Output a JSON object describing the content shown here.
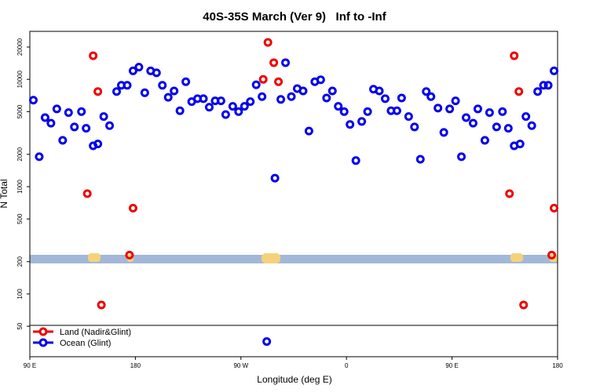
{
  "chart_data": {
    "type": "scatter",
    "title": "40S-35S March (Ver 9)   Inf to -Inf",
    "x_label": "Longitude (deg E)",
    "y_label": "N Total",
    "xlim": [
      90,
      540
    ],
    "xticks": [
      {
        "value": 90,
        "label": "90 E"
      },
      {
        "value": 180,
        "label": "180"
      },
      {
        "value": 270,
        "label": "90 W"
      },
      {
        "value": 360,
        "label": "0"
      },
      {
        "value": 450,
        "label": "90 E"
      },
      {
        "value": 540,
        "label": "180"
      }
    ],
    "ylim": [
      26,
      28000
    ],
    "yticks": [
      50,
      100,
      200,
      500,
      1000,
      2000,
      5000,
      10000,
      20000
    ],
    "y_log": true,
    "legend": "lower left",
    "series": [
      {
        "name": "Land (Nadir&Glint)",
        "color": "#ee0000",
        "x": [
          139,
          144,
          148,
          151,
          175,
          178,
          289,
          293,
          298,
          302,
          499,
          503,
          507,
          511,
          535,
          537
        ],
        "values": [
          860,
          16600,
          7700,
          79,
          230,
          630,
          10000,
          22100,
          14300,
          9500,
          860,
          16600,
          7700,
          79,
          230,
          630
        ]
      },
      {
        "name": "Ocean (Glint)",
        "color": "#0000ee",
        "x": [
          93,
          98,
          103,
          108,
          113,
          118,
          123,
          128,
          134,
          138,
          144,
          148,
          153,
          158,
          164,
          168,
          173,
          178,
          183,
          188,
          193,
          198,
          203,
          208,
          213,
          218,
          223,
          228,
          233,
          238,
          243,
          248,
          253,
          257,
          263,
          268,
          273,
          278,
          283,
          288,
          292,
          299,
          304,
          308,
          313,
          318,
          323,
          328,
          333,
          338,
          343,
          348,
          353,
          358,
          363,
          368,
          373,
          378,
          383,
          388,
          393,
          398,
          403,
          407,
          413,
          418,
          423,
          428,
          432,
          438,
          443,
          448,
          453,
          458,
          462,
          468,
          472,
          478,
          482,
          488,
          493,
          498,
          503,
          508,
          513,
          518,
          523,
          528,
          532,
          537
        ],
        "values": [
          6400,
          1900,
          4400,
          3900,
          5300,
          2700,
          4900,
          3600,
          5000,
          3500,
          2400,
          2500,
          4500,
          3700,
          7700,
          8800,
          8800,
          12000,
          13000,
          7500,
          12000,
          11500,
          8800,
          6800,
          7800,
          5100,
          9500,
          6200,
          6600,
          6600,
          5500,
          6300,
          6300,
          4700,
          5600,
          5000,
          5600,
          6200,
          8900,
          6900,
          36,
          1200,
          6500,
          14300,
          6900,
          8200,
          7800,
          3300,
          9500,
          9900,
          6700,
          7800,
          5600,
          5000,
          3800,
          1750,
          4050,
          5000,
          8100,
          7800,
          6600,
          5100,
          5100,
          6700,
          4500,
          3600,
          1800,
          7700,
          6900,
          5400,
          3200,
          5300,
          6300,
          1900,
          4400,
          3900,
          5300,
          2700,
          4900,
          3600,
          5000,
          3500,
          2400,
          2500,
          4500,
          3700,
          7700,
          8800,
          8800,
          12000
        ]
      }
    ]
  }
}
